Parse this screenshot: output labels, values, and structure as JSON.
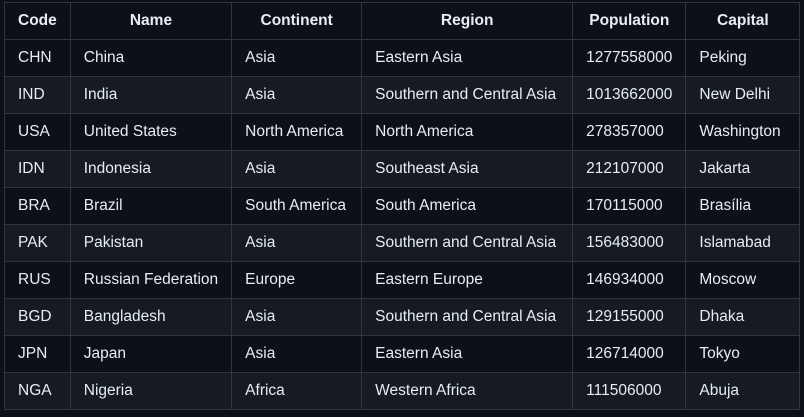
{
  "table": {
    "columns": [
      "Code",
      "Name",
      "Continent",
      "Region",
      "Population",
      "Capital"
    ],
    "rows": [
      [
        "CHN",
        "China",
        "Asia",
        "Eastern Asia",
        "1277558000",
        "Peking"
      ],
      [
        "IND",
        "India",
        "Asia",
        "Southern and Central Asia",
        "1013662000",
        "New Delhi"
      ],
      [
        "USA",
        "United States",
        "North America",
        "North America",
        "278357000",
        "Washington"
      ],
      [
        "IDN",
        "Indonesia",
        "Asia",
        "Southeast Asia",
        "212107000",
        "Jakarta"
      ],
      [
        "BRA",
        "Brazil",
        "South America",
        "South America",
        "170115000",
        "Brasília"
      ],
      [
        "PAK",
        "Pakistan",
        "Asia",
        "Southern and Central Asia",
        "156483000",
        "Islamabad"
      ],
      [
        "RUS",
        "Russian Federation",
        "Europe",
        "Eastern Europe",
        "146934000",
        "Moscow"
      ],
      [
        "BGD",
        "Bangladesh",
        "Asia",
        "Southern and Central Asia",
        "129155000",
        "Dhaka"
      ],
      [
        "JPN",
        "Japan",
        "Asia",
        "Eastern Asia",
        "126714000",
        "Tokyo"
      ],
      [
        "NGA",
        "Nigeria",
        "Africa",
        "Western Africa",
        "111506000",
        "Abuja"
      ]
    ]
  },
  "colors": {
    "background": "#0d1117",
    "row_alt": "#161b22",
    "border": "#30363d",
    "text": "#e6edf3"
  }
}
